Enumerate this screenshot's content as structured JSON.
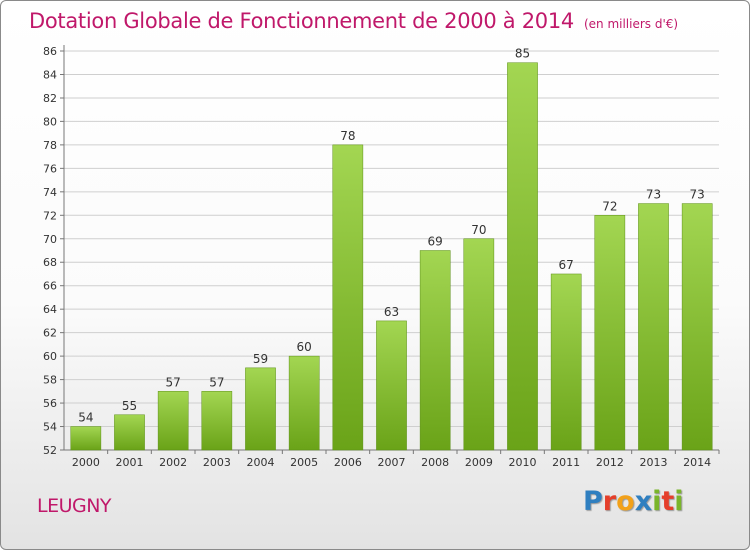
{
  "header": {
    "title": "Dotation Globale de Fonctionnement de 2000 à 2014",
    "subtitle": "(en milliers d'€)"
  },
  "footer": {
    "commune": "LEUGNY",
    "logo": {
      "letters": [
        "P",
        "r",
        "o",
        "x",
        "i",
        "t",
        "i"
      ]
    }
  },
  "colors": {
    "bar_light": "#a3d652",
    "bar_dark": "#6aa318",
    "title": "#c0186a",
    "grid": "#cfcfcf"
  },
  "chart_data": {
    "type": "bar",
    "title": "Dotation Globale de Fonctionnement de 2000 à 2014",
    "subtitle": "(en milliers d'€)",
    "xlabel": "",
    "ylabel": "",
    "categories": [
      "2000",
      "2001",
      "2002",
      "2003",
      "2004",
      "2005",
      "2006",
      "2007",
      "2008",
      "2009",
      "2010",
      "2011",
      "2012",
      "2013",
      "2014"
    ],
    "values": [
      54,
      55,
      57,
      57,
      59,
      60,
      78,
      63,
      69,
      70,
      85,
      67,
      72,
      73,
      73
    ],
    "ylim": [
      52,
      86
    ],
    "yticks": [
      52,
      54,
      56,
      58,
      60,
      62,
      64,
      66,
      68,
      70,
      72,
      74,
      76,
      78,
      80,
      82,
      84,
      86
    ],
    "grid": true,
    "legend": "none"
  }
}
